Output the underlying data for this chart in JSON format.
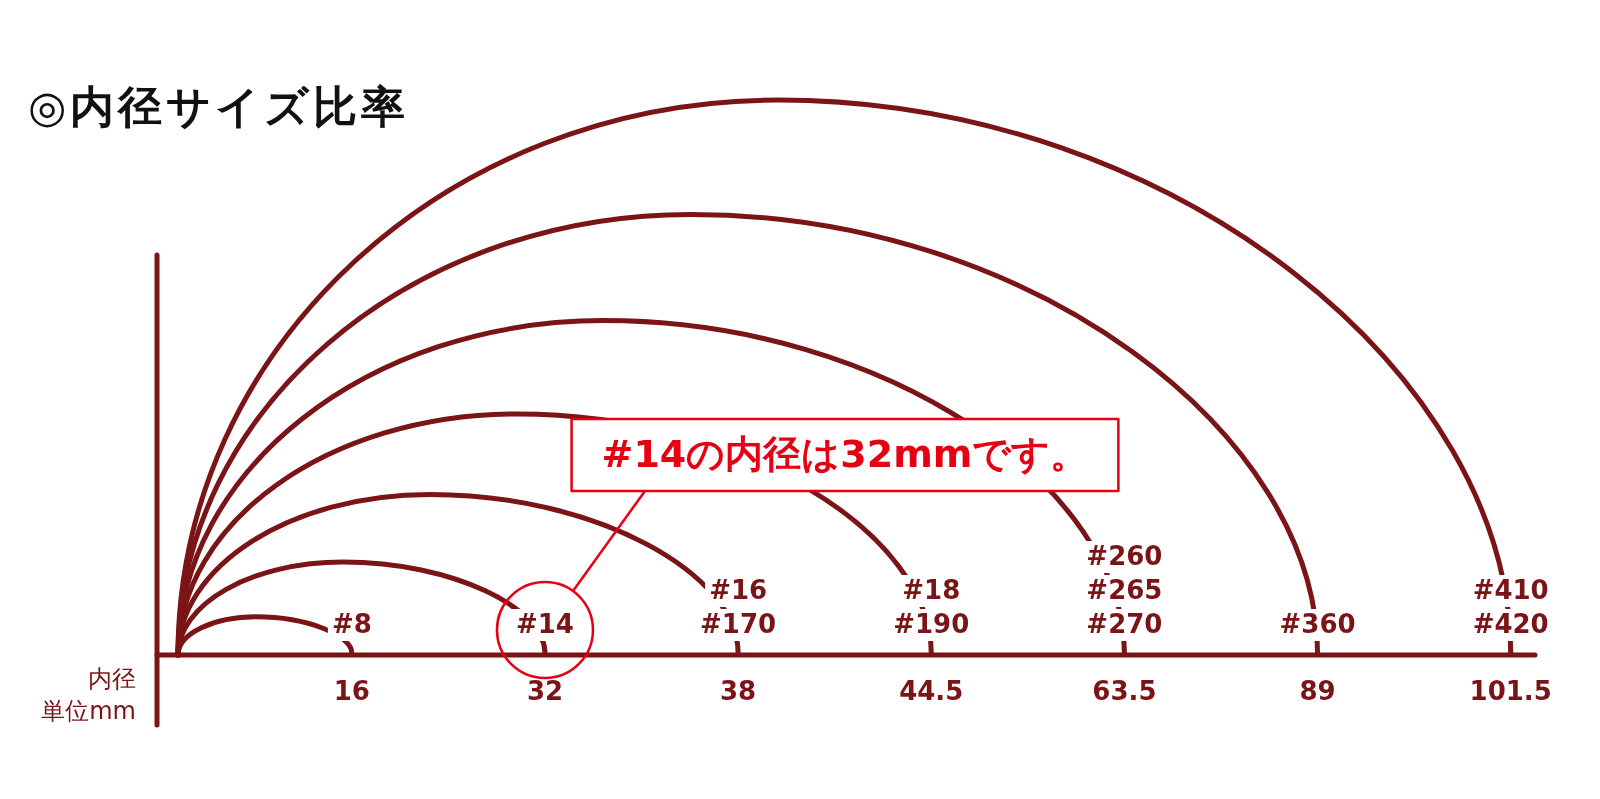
{
  "chart_data": {
    "type": "other",
    "title": "◎内径サイズ比率",
    "xlabel": "内径",
    "categories": [
      "#8",
      "#14",
      "#16\n#170",
      "#18\n#190",
      "#260\n#265\n#270",
      "#360",
      "#410\n#420"
    ],
    "values": [
      16,
      32,
      38,
      44.5,
      63.5,
      89,
      101.5
    ],
    "data_labels": true,
    "color": "#7b1416",
    "annotations": [
      {
        "text": "#14の内径は32mmです。",
        "x": "#14"
      },
      "単位mm"
    ]
  }
}
